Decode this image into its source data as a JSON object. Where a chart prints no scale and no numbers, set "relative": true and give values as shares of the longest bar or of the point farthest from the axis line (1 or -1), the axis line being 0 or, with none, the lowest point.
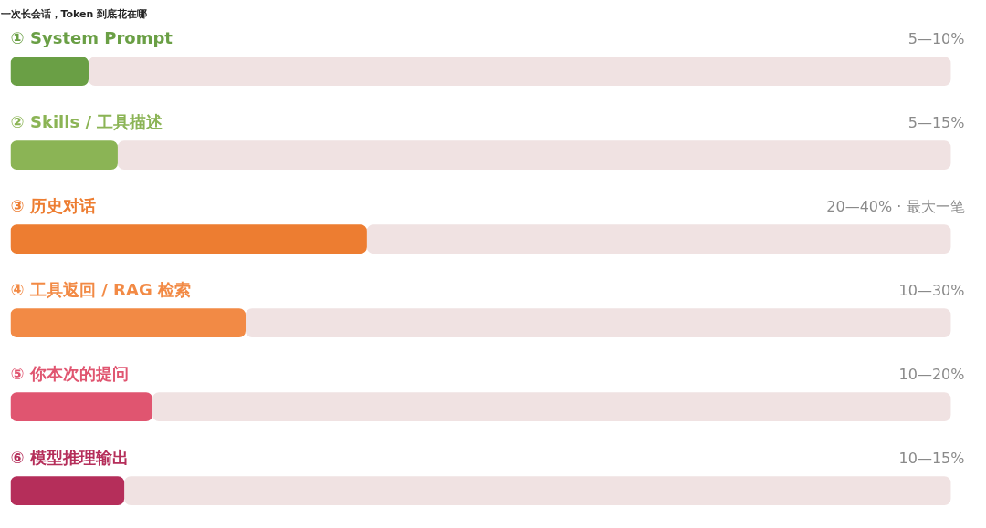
{
  "chart_data": {
    "type": "bar",
    "orientation": "horizontal",
    "stacked": true,
    "relative": true,
    "title": "一次长会话，Token 到底花在哪",
    "categories": [
      "① System Prompt",
      "② Skills / 工具描述",
      "③ 历史对话",
      "④ 工具返回 / RAG 检索",
      "⑤ 你本次的提问",
      "⑥ 模型推理输出"
    ],
    "series": [
      {
        "colors": [
          "#6a9f45",
          "#8bb455",
          "#ed7d31",
          "#f28a45",
          "#e05570",
          "#b52e5a"
        ],
        "values": [
          0.083,
          0.114,
          0.379,
          0.25,
          0.151,
          0.121
        ]
      },
      {
        "color": "#f0e2e2",
        "values": [
          0.917,
          0.886,
          0.621,
          0.75,
          0.849,
          0.879
        ]
      }
    ],
    "annotations": [
      "5—10%",
      "5—15%",
      "20—40% · 最大一笔",
      "10—30%",
      "10—20%",
      "10—15%"
    ],
    "grid": false
  }
}
